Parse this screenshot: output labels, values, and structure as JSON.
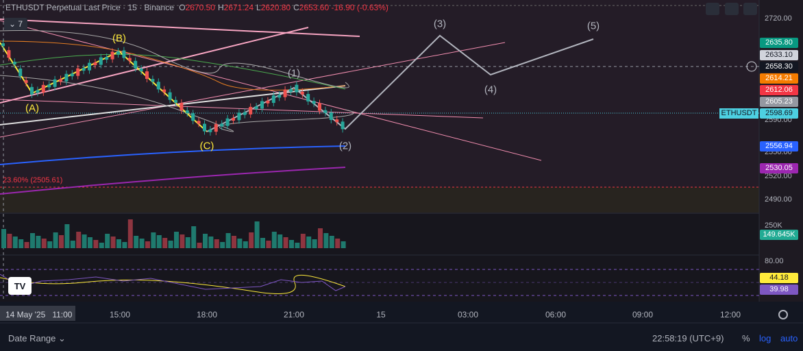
{
  "header": {
    "symbol": "ETHUSDT Perpetual Last Price · 15 · Binance",
    "ohlc": [
      {
        "label": "O",
        "value": "2670.50"
      },
      {
        "label": "H",
        "value": "2671.24"
      },
      {
        "label": "L",
        "value": "2620.80"
      },
      {
        "label": "C",
        "value": "2653.60"
      }
    ],
    "change": "-16.90 (-0.63%)",
    "indicators_count": "7"
  },
  "price_axis": {
    "ticks": [
      "2720.00",
      "2590.00",
      "2550.00",
      "2520.00",
      "2490.00"
    ],
    "badges": [
      {
        "text": "2635.80",
        "color": "#089981"
      },
      {
        "text": "2633.10",
        "color": "#d1d4dc"
      },
      {
        "text": "2658.30",
        "color": "#131722"
      },
      {
        "text": "2614.21",
        "color": "#f57c00"
      },
      {
        "text": "2612.06",
        "color": "#f23645"
      },
      {
        "text": "2605.23",
        "color": "#9598a1"
      },
      {
        "text": "2598.69",
        "color": "#4dd0e1"
      },
      {
        "text": "2556.94",
        "color": "#2962ff"
      },
      {
        "text": "2530.05",
        "color": "#9c27b0"
      }
    ],
    "symbol_badge": "ETHUSDT"
  },
  "volume_axis": {
    "ticks": [
      "250K"
    ],
    "badge": {
      "text": "149.645K",
      "color": "#22ab94"
    }
  },
  "rsi_axis": {
    "ticks": [
      "80.00"
    ],
    "badges": [
      {
        "text": "44.18",
        "color": "#ffeb3b"
      },
      {
        "text": "39.98",
        "color": "#7e57c2"
      }
    ]
  },
  "time_axis": {
    "cursor": "14 May '25   11:00",
    "ticks": [
      "15:00",
      "18:00",
      "21:00",
      "15",
      "03:00",
      "06:00",
      "09:00",
      "12:00"
    ]
  },
  "annotations": {
    "waves": [
      "(A)",
      "(B)",
      "(C)",
      "(1)",
      "(2)",
      "(3)",
      "(4)",
      "(5)"
    ],
    "fib": "23.60% (2505.61)"
  },
  "footer": {
    "date_range": "Date Range",
    "clock": "22:58:19 (UTC+9)",
    "percent": "%",
    "log": "log",
    "auto": "auto"
  }
}
